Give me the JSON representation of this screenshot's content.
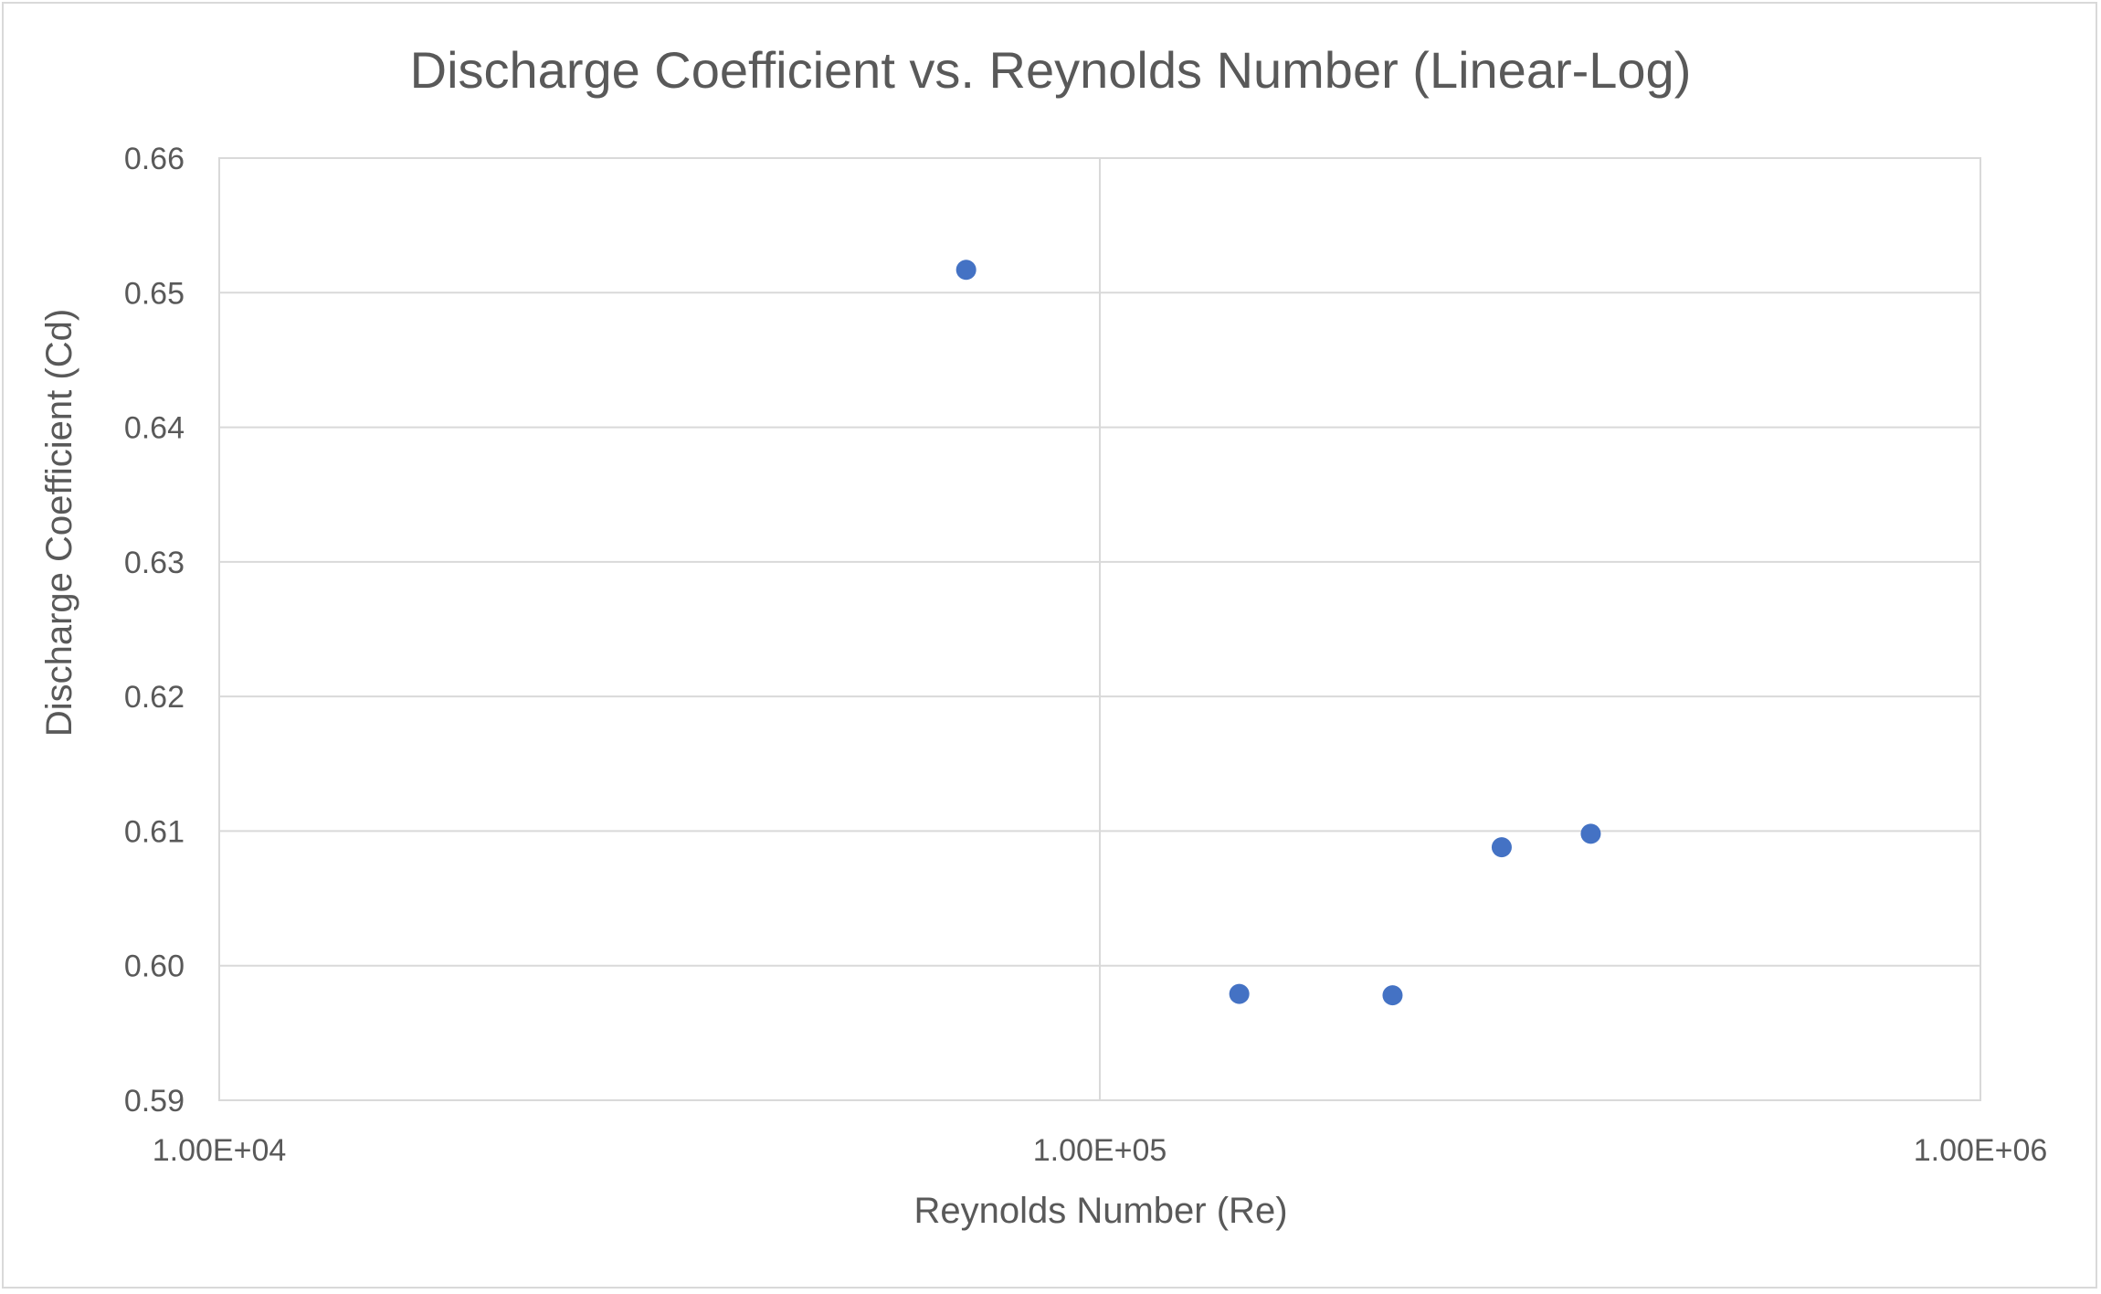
{
  "chart_data": {
    "type": "scatter",
    "title": "Discharge Coefficient vs. Reynolds Number (Linear-Log)",
    "xlabel": "Reynolds Number (Re)",
    "ylabel": "Discharge Coefficient (Cd)",
    "x_scale": "log",
    "xlim": [
      10000,
      1000000
    ],
    "ylim": [
      0.59,
      0.66
    ],
    "x_ticks": [
      10000,
      100000,
      1000000
    ],
    "x_tick_labels": [
      "1.00E+04",
      "1.00E+05",
      "1.00E+06"
    ],
    "y_ticks": [
      0.59,
      0.6,
      0.61,
      0.62,
      0.63,
      0.64,
      0.65,
      0.66
    ],
    "y_tick_labels": [
      "0.59",
      "0.60",
      "0.61",
      "0.62",
      "0.63",
      "0.64",
      "0.65",
      "0.66"
    ],
    "grid": true,
    "legend": "none",
    "marker_color": "#4472C4",
    "points": [
      {
        "x": 70500,
        "y": 0.6517
      },
      {
        "x": 144000,
        "y": 0.5979
      },
      {
        "x": 215000,
        "y": 0.5978
      },
      {
        "x": 286000,
        "y": 0.6088
      },
      {
        "x": 361000,
        "y": 0.6098
      }
    ]
  }
}
